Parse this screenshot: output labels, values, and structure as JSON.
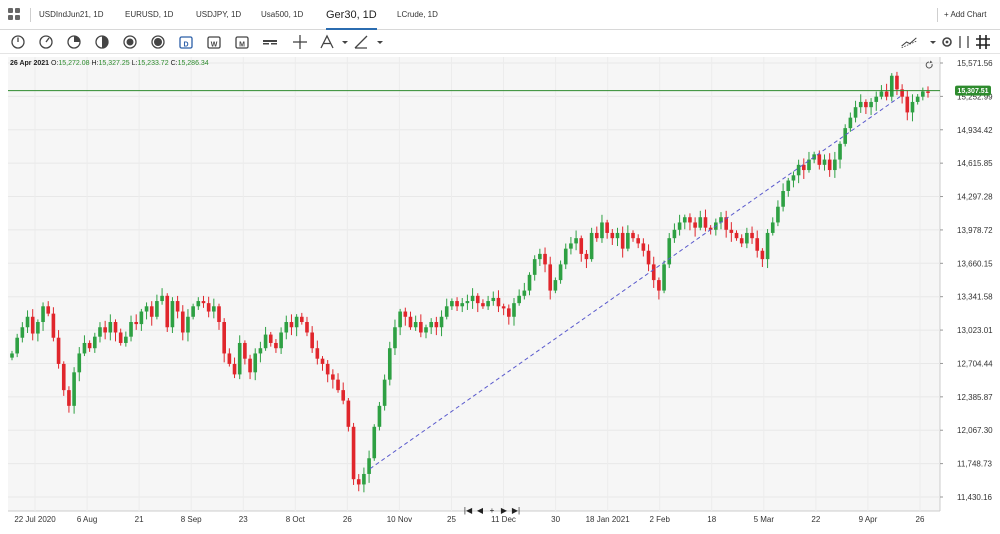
{
  "tabs": [
    {
      "label": "USDIndJun21, 1D",
      "active": false
    },
    {
      "label": "EURUSD, 1D",
      "active": false
    },
    {
      "label": "USDJPY, 1D",
      "active": false
    },
    {
      "label": "Usa500, 1D",
      "active": false
    },
    {
      "label": "Ger30, 1D",
      "active": true
    },
    {
      "label": "LCrude, 1D",
      "active": false
    }
  ],
  "add_chart_label": "+ Add Chart",
  "toolbar": {
    "left_tools": [
      "clock-1-icon",
      "clock-2-icon",
      "clock-3-icon",
      "half-circle-icon",
      "circle-1-icon",
      "circle-2-icon",
      "calendar-d-icon",
      "calendar-w-icon",
      "calendar-m-icon",
      "chart-type-icon",
      "crosshair-icon",
      "text-tool-icon",
      "draw-tool-icon"
    ],
    "right_tools": [
      "indicator-icon",
      "settings-icon",
      "fullscreen-icon",
      "grid-layout-icon"
    ]
  },
  "ohlc": {
    "date": "26 Apr 2021",
    "open_label": "O:",
    "open": "15,272.08",
    "high_label": "H:",
    "high": "15,327.25",
    "low_label": "L:",
    "low": "15,233.72",
    "close_label": "C:",
    "close": "15,286.34"
  },
  "current_price": "15,307.51",
  "navigation": [
    "|◀",
    "◀",
    "+",
    "▶",
    "▶|"
  ],
  "colors": {
    "up": "#2ea043",
    "down": "#e0262c",
    "price_line": "#2e8b2e",
    "trend_line": "#5a5acd",
    "accent": "#2b6cb0"
  },
  "chart_data": {
    "type": "candlestick",
    "symbol": "Ger30",
    "timeframe": "1D",
    "y_ticks": [
      "15,571.56",
      "15,252.99",
      "14,934.42",
      "14,615.85",
      "14,297.28",
      "13,978.72",
      "13,660.15",
      "13,341.58",
      "13,023.01",
      "12,704.44",
      "12,385.87",
      "12,067.30",
      "11,748.73",
      "11,430.16"
    ],
    "x_ticks": [
      "22 Jul 2020",
      "6 Aug",
      "21",
      "8 Sep",
      "23",
      "8 Oct",
      "26",
      "10 Nov",
      "25",
      "11 Dec",
      "30",
      "18 Jan 2021",
      "2 Feb",
      "18",
      "5 Mar",
      "22",
      "9 Apr",
      "26"
    ],
    "ylim": [
      11430.16,
      15571.56
    ],
    "grid": true,
    "trendline": {
      "from": {
        "date": "30 Oct 2020",
        "value": 11700
      },
      "to": {
        "date": "20 Apr 2021",
        "value": 15250
      }
    },
    "closes": [
      12800,
      12950,
      13050,
      13150,
      12990,
      13100,
      13250,
      13180,
      12950,
      12700,
      12450,
      12300,
      12620,
      12800,
      12900,
      12850,
      12960,
      13050,
      13000,
      13100,
      13000,
      12900,
      12960,
      13100,
      13080,
      13200,
      13250,
      13150,
      13300,
      13350,
      13050,
      13300,
      13200,
      13000,
      13150,
      13250,
      13300,
      13280,
      13200,
      13250,
      13100,
      12800,
      12700,
      12600,
      12900,
      12750,
      12620,
      12800,
      12850,
      12980,
      12900,
      12850,
      13000,
      13100,
      13050,
      13150,
      13100,
      13000,
      12850,
      12750,
      12700,
      12600,
      12550,
      12450,
      12350,
      12100,
      11600,
      11550,
      11650,
      11800,
      12100,
      12300,
      12550,
      12850,
      13050,
      13200,
      13150,
      13050,
      13100,
      13000,
      13050,
      13100,
      13050,
      13150,
      13250,
      13300,
      13250,
      13280,
      13300,
      13350,
      13280,
      13250,
      13300,
      13330,
      13250,
      13230,
      13150,
      13280,
      13350,
      13400,
      13550,
      13700,
      13750,
      13650,
      13400,
      13500,
      13650,
      13800,
      13850,
      13900,
      13750,
      13700,
      13950,
      13900,
      14050,
      13950,
      13900,
      13950,
      13800,
      13950,
      13900,
      13850,
      13780,
      13650,
      13500,
      13400,
      13650,
      13900,
      13980,
      14050,
      14100,
      14050,
      14000,
      14100,
      14000,
      13980,
      14050,
      14100,
      13980,
      13950,
      13900,
      13850,
      13950,
      13900,
      13780,
      13700,
      13950,
      14050,
      14200,
      14350,
      14450,
      14500,
      14600,
      14550,
      14650,
      14700,
      14600,
      14650,
      14550,
      14650,
      14800,
      14950,
      15050,
      15150,
      15200,
      15150,
      15200,
      15250,
      15300,
      15250,
      15450,
      15320,
      15250,
      15100,
      15200,
      15250,
      15300,
      15286
    ]
  }
}
